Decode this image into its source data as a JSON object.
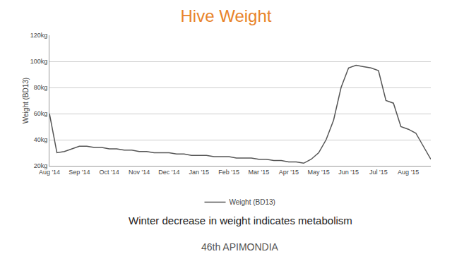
{
  "chart_data": {
    "type": "line",
    "title": "Hive Weight",
    "y_label": "Weight (BD13)",
    "categories": [
      "Aug '14",
      null,
      null,
      null,
      "Sep '14",
      null,
      null,
      null,
      "Oct '14",
      null,
      null,
      null,
      "Nov '14",
      null,
      null,
      null,
      "Dec '14",
      null,
      null,
      null,
      "Jan '15",
      null,
      null,
      null,
      "Feb '15",
      null,
      null,
      null,
      "Mar '15",
      null,
      null,
      null,
      "Apr '15",
      null,
      null,
      null,
      "May '15",
      null,
      null,
      null,
      "Jun '15",
      null,
      null,
      null,
      "Jul '15",
      null,
      null,
      null,
      "Aug '15",
      null,
      null,
      null
    ],
    "series": [
      {
        "name": "Weight (BD13)",
        "color": "#555555",
        "values": [
          60,
          30,
          31,
          33,
          35,
          35,
          34,
          34,
          33,
          33,
          32,
          32,
          31,
          31,
          30,
          30,
          30,
          29,
          29,
          28,
          28,
          28,
          27,
          27,
          27,
          26,
          26,
          26,
          25,
          25,
          24,
          24,
          23,
          23,
          22,
          25,
          30,
          40,
          55,
          80,
          95,
          97,
          96,
          95,
          93,
          70,
          68,
          50,
          48,
          45,
          35,
          25
        ]
      }
    ],
    "ylim": [
      20,
      120
    ],
    "yticks": [
      {
        "value": 20,
        "label": "20kg"
      },
      {
        "value": 40,
        "label": "40kg"
      },
      {
        "value": 60,
        "label": "60kg"
      },
      {
        "value": 80,
        "label": "80kg"
      },
      {
        "value": 100,
        "label": "100kg"
      },
      {
        "value": 120,
        "label": "120kg"
      }
    ],
    "grid": true,
    "legend": "bottom",
    "annotations": [
      "Winter decrease in weight indicates metabolism",
      "46th APIMONDIA"
    ]
  }
}
